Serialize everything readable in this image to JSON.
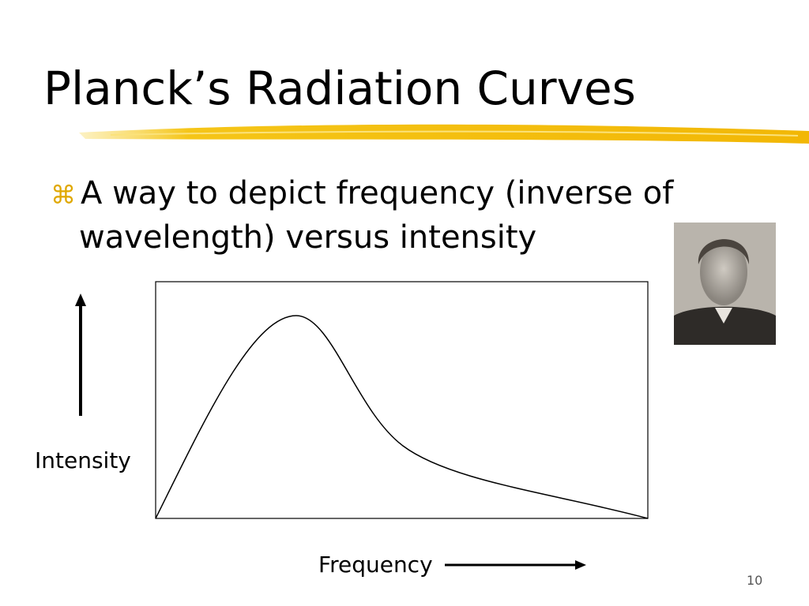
{
  "header": {
    "title": "Planck’s Radiation Curves"
  },
  "bullet": {
    "symbol": "⌘",
    "lines": [
      "A way to depict frequency (inverse of",
      "wavelength) versus intensity"
    ]
  },
  "diagram": {
    "y_label": "Intensity",
    "x_label": "Frequency"
  },
  "footer": {
    "page_number": "10"
  }
}
